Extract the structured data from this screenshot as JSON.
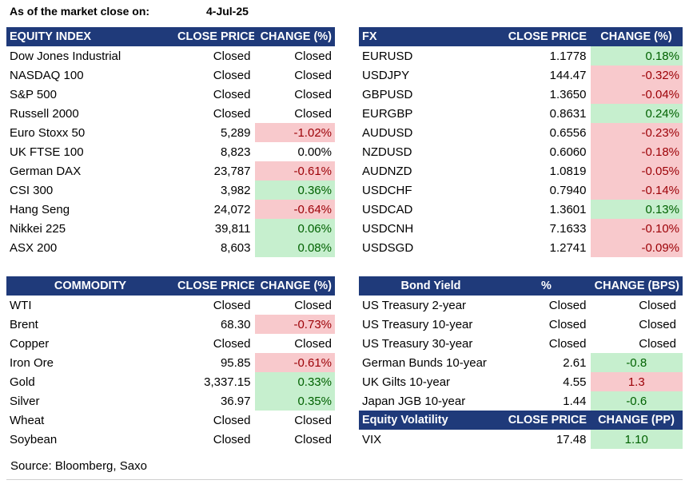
{
  "header": {
    "label": "As of the market close on:",
    "date": "4-Jul-25"
  },
  "equity": {
    "headers": [
      "EQUITY INDEX",
      "CLOSE PRICE",
      "CHANGE (%)"
    ],
    "rows": [
      {
        "name": "Dow Jones Industrial",
        "close": "Closed",
        "change": "Closed",
        "dir": "flat"
      },
      {
        "name": "NASDAQ 100",
        "close": "Closed",
        "change": "Closed",
        "dir": "flat"
      },
      {
        "name": "S&P 500",
        "close": "Closed",
        "change": "Closed",
        "dir": "flat"
      },
      {
        "name": "Russell 2000",
        "close": "Closed",
        "change": "Closed",
        "dir": "flat"
      },
      {
        "name": "Euro Stoxx 50",
        "close": "5,289",
        "change": "-1.02%",
        "dir": "neg"
      },
      {
        "name": "UK FTSE 100",
        "close": "8,823",
        "change": "0.00%",
        "dir": "flat"
      },
      {
        "name": "German DAX",
        "close": "23,787",
        "change": "-0.61%",
        "dir": "neg"
      },
      {
        "name": "CSI 300",
        "close": "3,982",
        "change": "0.36%",
        "dir": "pos"
      },
      {
        "name": "Hang Seng",
        "close": "24,072",
        "change": "-0.64%",
        "dir": "neg"
      },
      {
        "name": "Nikkei 225",
        "close": "39,811",
        "change": "0.06%",
        "dir": "pos"
      },
      {
        "name": "ASX 200",
        "close": "8,603",
        "change": "0.08%",
        "dir": "pos"
      }
    ]
  },
  "fx": {
    "headers": [
      "FX",
      "CLOSE PRICE",
      "CHANGE (%)"
    ],
    "rows": [
      {
        "name": "EURUSD",
        "close": "1.1778",
        "change": "0.18%",
        "dir": "pos"
      },
      {
        "name": "USDJPY",
        "close": "144.47",
        "change": "-0.32%",
        "dir": "neg"
      },
      {
        "name": "GBPUSD",
        "close": "1.3650",
        "change": "-0.04%",
        "dir": "neg"
      },
      {
        "name": "EURGBP",
        "close": "0.8631",
        "change": "0.24%",
        "dir": "pos"
      },
      {
        "name": "AUDUSD",
        "close": "0.6556",
        "change": "-0.23%",
        "dir": "neg"
      },
      {
        "name": "NZDUSD",
        "close": "0.6060",
        "change": "-0.18%",
        "dir": "neg"
      },
      {
        "name": "AUDNZD",
        "close": "1.0819",
        "change": "-0.05%",
        "dir": "neg"
      },
      {
        "name": "USDCHF",
        "close": "0.7940",
        "change": "-0.14%",
        "dir": "neg"
      },
      {
        "name": "USDCAD",
        "close": "1.3601",
        "change": "0.13%",
        "dir": "pos"
      },
      {
        "name": "USDCNH",
        "close": "7.1633",
        "change": "-0.10%",
        "dir": "neg"
      },
      {
        "name": "USDSGD",
        "close": "1.2741",
        "change": "-0.09%",
        "dir": "neg"
      }
    ]
  },
  "commodity": {
    "headers": [
      "COMMODITY",
      "CLOSE PRICE",
      "CHANGE (%)"
    ],
    "rows": [
      {
        "name": "WTI",
        "close": "Closed",
        "change": "Closed",
        "dir": "flat"
      },
      {
        "name": "Brent",
        "close": "68.30",
        "change": "-0.73%",
        "dir": "neg"
      },
      {
        "name": "Copper",
        "close": "Closed",
        "change": "Closed",
        "dir": "flat"
      },
      {
        "name": "Iron Ore",
        "close": "95.85",
        "change": "-0.61%",
        "dir": "neg"
      },
      {
        "name": "Gold",
        "close": "3,337.15",
        "change": "0.33%",
        "dir": "pos"
      },
      {
        "name": "Silver",
        "close": "36.97",
        "change": "0.35%",
        "dir": "pos"
      },
      {
        "name": "Wheat",
        "close": "Closed",
        "change": "Closed",
        "dir": "flat"
      },
      {
        "name": "Soybean",
        "close": "Closed",
        "change": "Closed",
        "dir": "flat"
      }
    ]
  },
  "bonds": {
    "headers": [
      "Bond Yield",
      "%",
      "CHANGE (BPS)"
    ],
    "rows": [
      {
        "name": "US Treasury 2-year",
        "close": "Closed",
        "change": "Closed",
        "dir": "flat",
        "align": "r"
      },
      {
        "name": "US Treasury 10-year",
        "close": "Closed",
        "change": "Closed",
        "dir": "flat",
        "align": "r"
      },
      {
        "name": "US Treasury 30-year",
        "close": "Closed",
        "change": "Closed",
        "dir": "flat",
        "align": "r"
      },
      {
        "name": "German Bunds 10-year",
        "close": "2.61",
        "change": "-0.8",
        "dir": "pos",
        "align": "cen"
      },
      {
        "name": "UK Gilts 10-year",
        "close": "4.55",
        "change": "1.3",
        "dir": "neg",
        "align": "cen"
      },
      {
        "name": "Japan JGB 10-year",
        "close": "1.44",
        "change": "-0.6",
        "dir": "pos",
        "align": "cen"
      }
    ]
  },
  "volatility": {
    "headers": [
      "Equity Volatility",
      "CLOSE PRICE",
      "CHANGE (PP)"
    ],
    "rows": [
      {
        "name": "VIX",
        "close": "17.48",
        "change": "1.10",
        "dir": "pos",
        "align": "cen"
      }
    ]
  },
  "footer": {
    "source": "Source: Bloomberg, Saxo"
  },
  "colors": {
    "header_bg": "#1f3a7a",
    "negative_bg": "#f8c9cc",
    "negative_text": "#9c0006",
    "positive_bg": "#c6efce",
    "positive_text": "#006100"
  }
}
